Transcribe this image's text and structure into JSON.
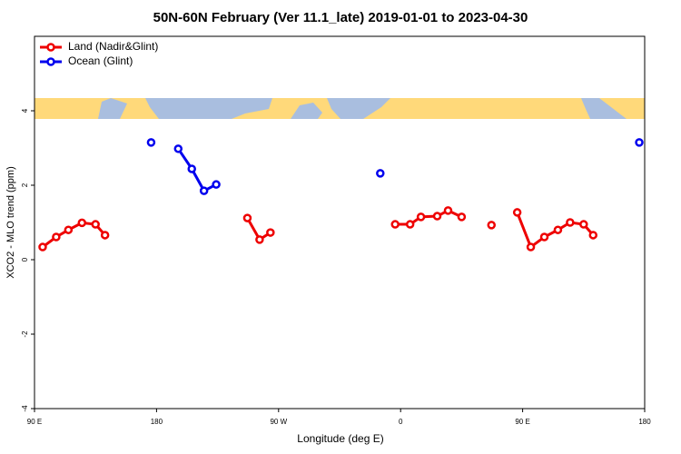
{
  "chart_data": {
    "type": "line",
    "title": "50N-60N February (Ver 11.1_late)   2019-01-01 to 2023-04-30",
    "xlabel": "Longitude (deg E)",
    "ylabel": "XCO2 - MLO trend (ppm)",
    "xlim": [
      90,
      540
    ],
    "ylim": [
      -4,
      6
    ],
    "xticks": [
      {
        "value": 90,
        "label": "90 E"
      },
      180,
      {
        "value": 270,
        "label": "90 W"
      },
      {
        "value": 360,
        "label": "0"
      },
      {
        "value": 450,
        "label": "90 E"
      },
      180
    ],
    "yticks": [
      -4,
      -2,
      0,
      2,
      4
    ],
    "legend": "top-left",
    "series": [
      {
        "name": "Land (Nadir&Glint)",
        "color": "#ee0000",
        "x": [
          96,
          106,
          115,
          125,
          135,
          142,
          null,
          247,
          256,
          264,
          null,
          356,
          367,
          375,
          387,
          395,
          405,
          null,
          427,
          null,
          446,
          456,
          466,
          476,
          485,
          495,
          502
        ],
        "values": [
          0.34,
          0.61,
          0.8,
          0.99,
          0.95,
          0.66,
          null,
          1.12,
          0.54,
          0.73,
          null,
          0.95,
          0.95,
          1.15,
          1.17,
          1.32,
          1.15,
          null,
          0.93,
          null,
          1.27,
          0.34,
          0.61,
          0.8,
          1.0,
          0.95,
          0.66
        ]
      },
      {
        "name": "Ocean (Glint)",
        "color": "#0000ee",
        "x": [
          176,
          null,
          196,
          206,
          215,
          224,
          null,
          345,
          null,
          536
        ],
        "values": [
          3.15,
          null,
          2.98,
          2.44,
          1.85,
          2.02,
          null,
          2.32,
          null,
          3.15
        ]
      }
    ]
  }
}
